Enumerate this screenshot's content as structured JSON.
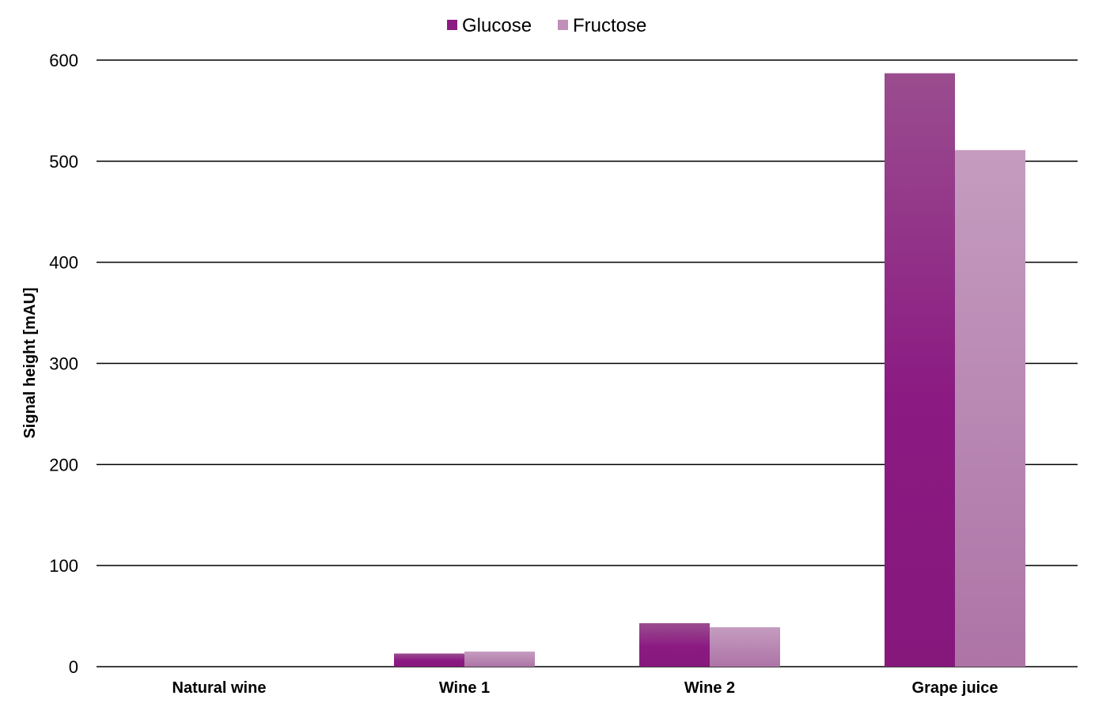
{
  "chart_data": {
    "type": "bar",
    "categories": [
      "Natural wine",
      "Wine 1",
      "Wine 2",
      "Grape juice"
    ],
    "series": [
      {
        "name": "Glucose",
        "values": [
          0,
          13,
          43,
          587
        ],
        "color": "#8b1a82"
      },
      {
        "name": "Fructose",
        "values": [
          0,
          15,
          39,
          511
        ],
        "color": "#c08fba"
      }
    ],
    "ylabel": "Signal height [mAU]",
    "xlabel": "",
    "ylim": [
      0,
      600
    ],
    "yticks": [
      "0",
      "100",
      "200",
      "300",
      "400",
      "500",
      "600"
    ],
    "grid": true,
    "legend": "top-center"
  }
}
